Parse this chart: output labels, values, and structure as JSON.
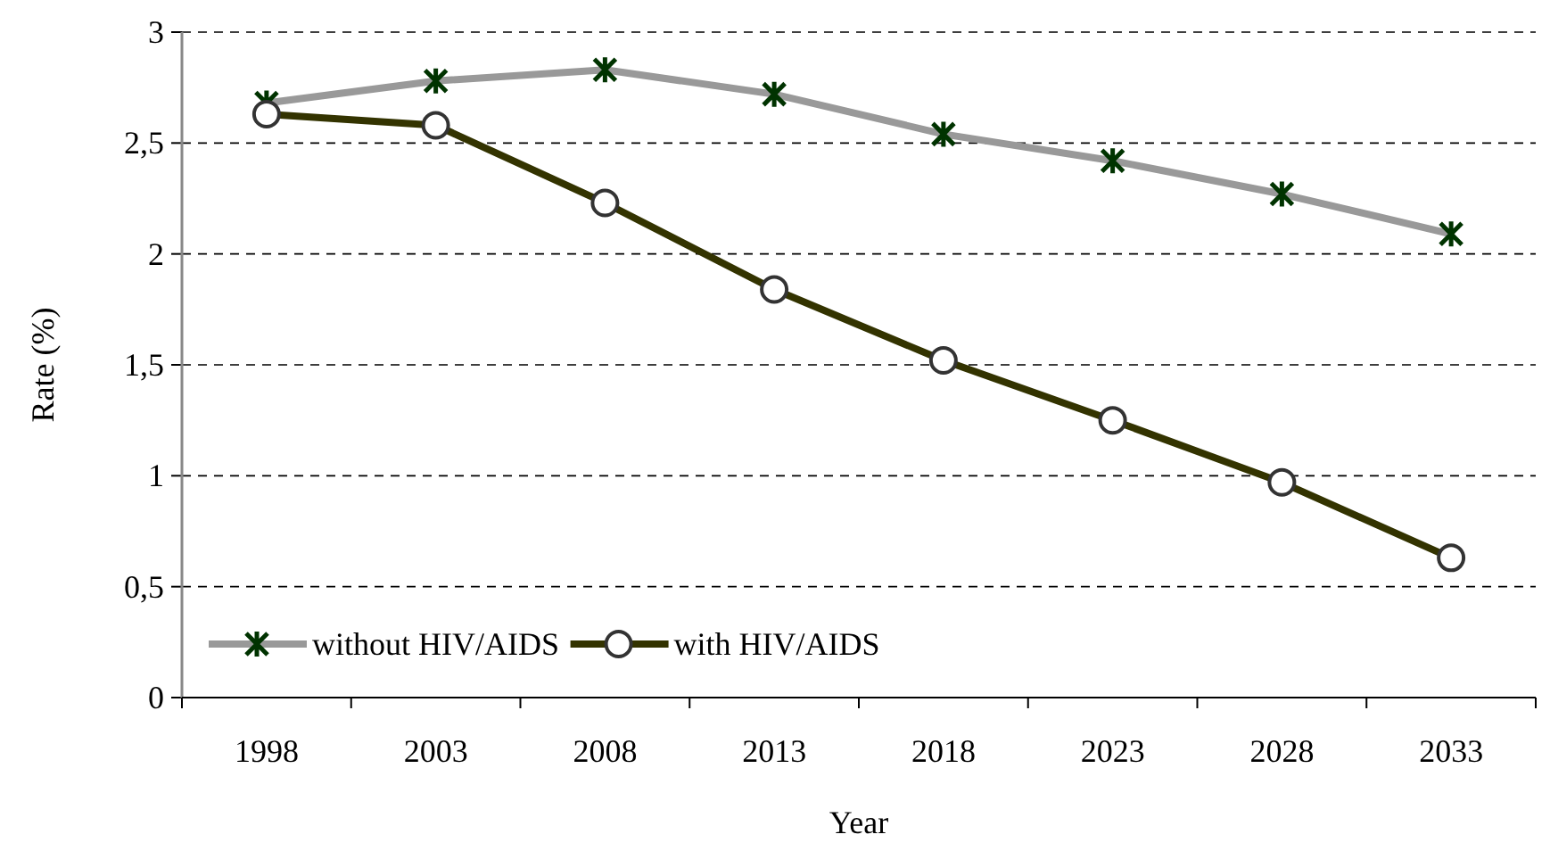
{
  "chart_data": {
    "type": "line",
    "xlabel": "Year",
    "ylabel": "Rate (%)",
    "categories": [
      "1998",
      "2003",
      "2008",
      "2013",
      "2018",
      "2023",
      "2028",
      "2033"
    ],
    "series": [
      {
        "name": "without HIV/AIDS",
        "color": "#999999",
        "marker": "cross",
        "values": [
          2.68,
          2.78,
          2.83,
          2.72,
          2.54,
          2.42,
          2.27,
          2.09
        ]
      },
      {
        "name": "with HIV/AIDS",
        "color": "#333300",
        "marker": "circle",
        "values": [
          2.63,
          2.58,
          2.23,
          1.84,
          1.52,
          1.25,
          0.97,
          0.63
        ]
      }
    ],
    "ylim": [
      0,
      3
    ],
    "yticks": [
      0,
      {
        "value": 0.5,
        "label": "0,5"
      },
      1,
      {
        "value": 1.5,
        "label": "1,5"
      },
      2,
      {
        "value": 2.5,
        "label": "2,5"
      },
      3
    ],
    "grid": "y",
    "legend": "bottom left"
  }
}
